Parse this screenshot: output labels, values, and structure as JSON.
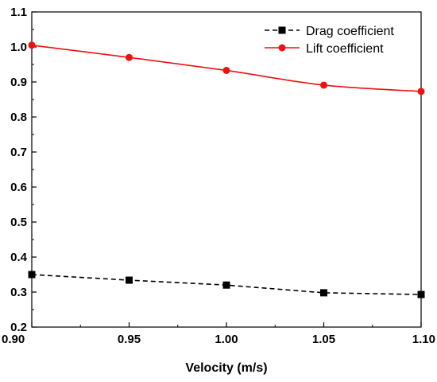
{
  "chart_data": {
    "type": "line",
    "title": "",
    "xlabel": "Velocity (m/s)",
    "ylabel": "",
    "x": [
      0.9,
      0.95,
      1.0,
      1.05,
      1.1
    ],
    "xlim": [
      0.9,
      1.1
    ],
    "ylim": [
      0.2,
      1.1
    ],
    "xticks": [
      "0.90",
      "0.95",
      "1.00",
      "1.05",
      "1.10"
    ],
    "yticks": [
      "0.2",
      "0.3",
      "0.4",
      "0.5",
      "0.6",
      "0.7",
      "0.8",
      "0.9",
      "1.0",
      "1.1"
    ],
    "grid": false,
    "legend_position": "top-right",
    "series": [
      {
        "name": "Drag coefficient",
        "values": [
          0.35,
          0.334,
          0.32,
          0.298,
          0.293
        ],
        "color": "#000000",
        "line_style": "dashed",
        "marker": "square"
      },
      {
        "name": "Lift coefficient",
        "values": [
          1.005,
          0.97,
          0.933,
          0.891,
          0.873
        ],
        "color": "#ee1111",
        "line_style": "solid",
        "marker": "circle"
      }
    ]
  }
}
